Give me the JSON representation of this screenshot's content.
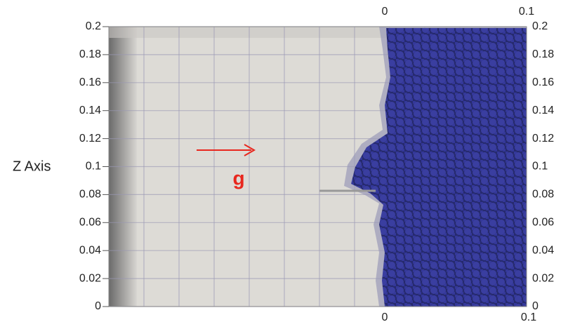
{
  "axis_title": "Z Axis",
  "left_ticks": [
    "0.2",
    "0.18",
    "0.16",
    "0.14",
    "0.12",
    "0.1",
    "0.08",
    "0.06",
    "0.04",
    "0.02",
    "0"
  ],
  "right_ticks": [
    "0.2",
    "0.18",
    "0.16",
    "0.14",
    "0.12",
    "0.1",
    "0.08",
    "0.06",
    "0.04",
    "0.02",
    "0"
  ],
  "top_ticks": [
    "0",
    "0.1"
  ],
  "bottom_ticks": [
    "0",
    "0.1"
  ],
  "annotation": "g"
}
